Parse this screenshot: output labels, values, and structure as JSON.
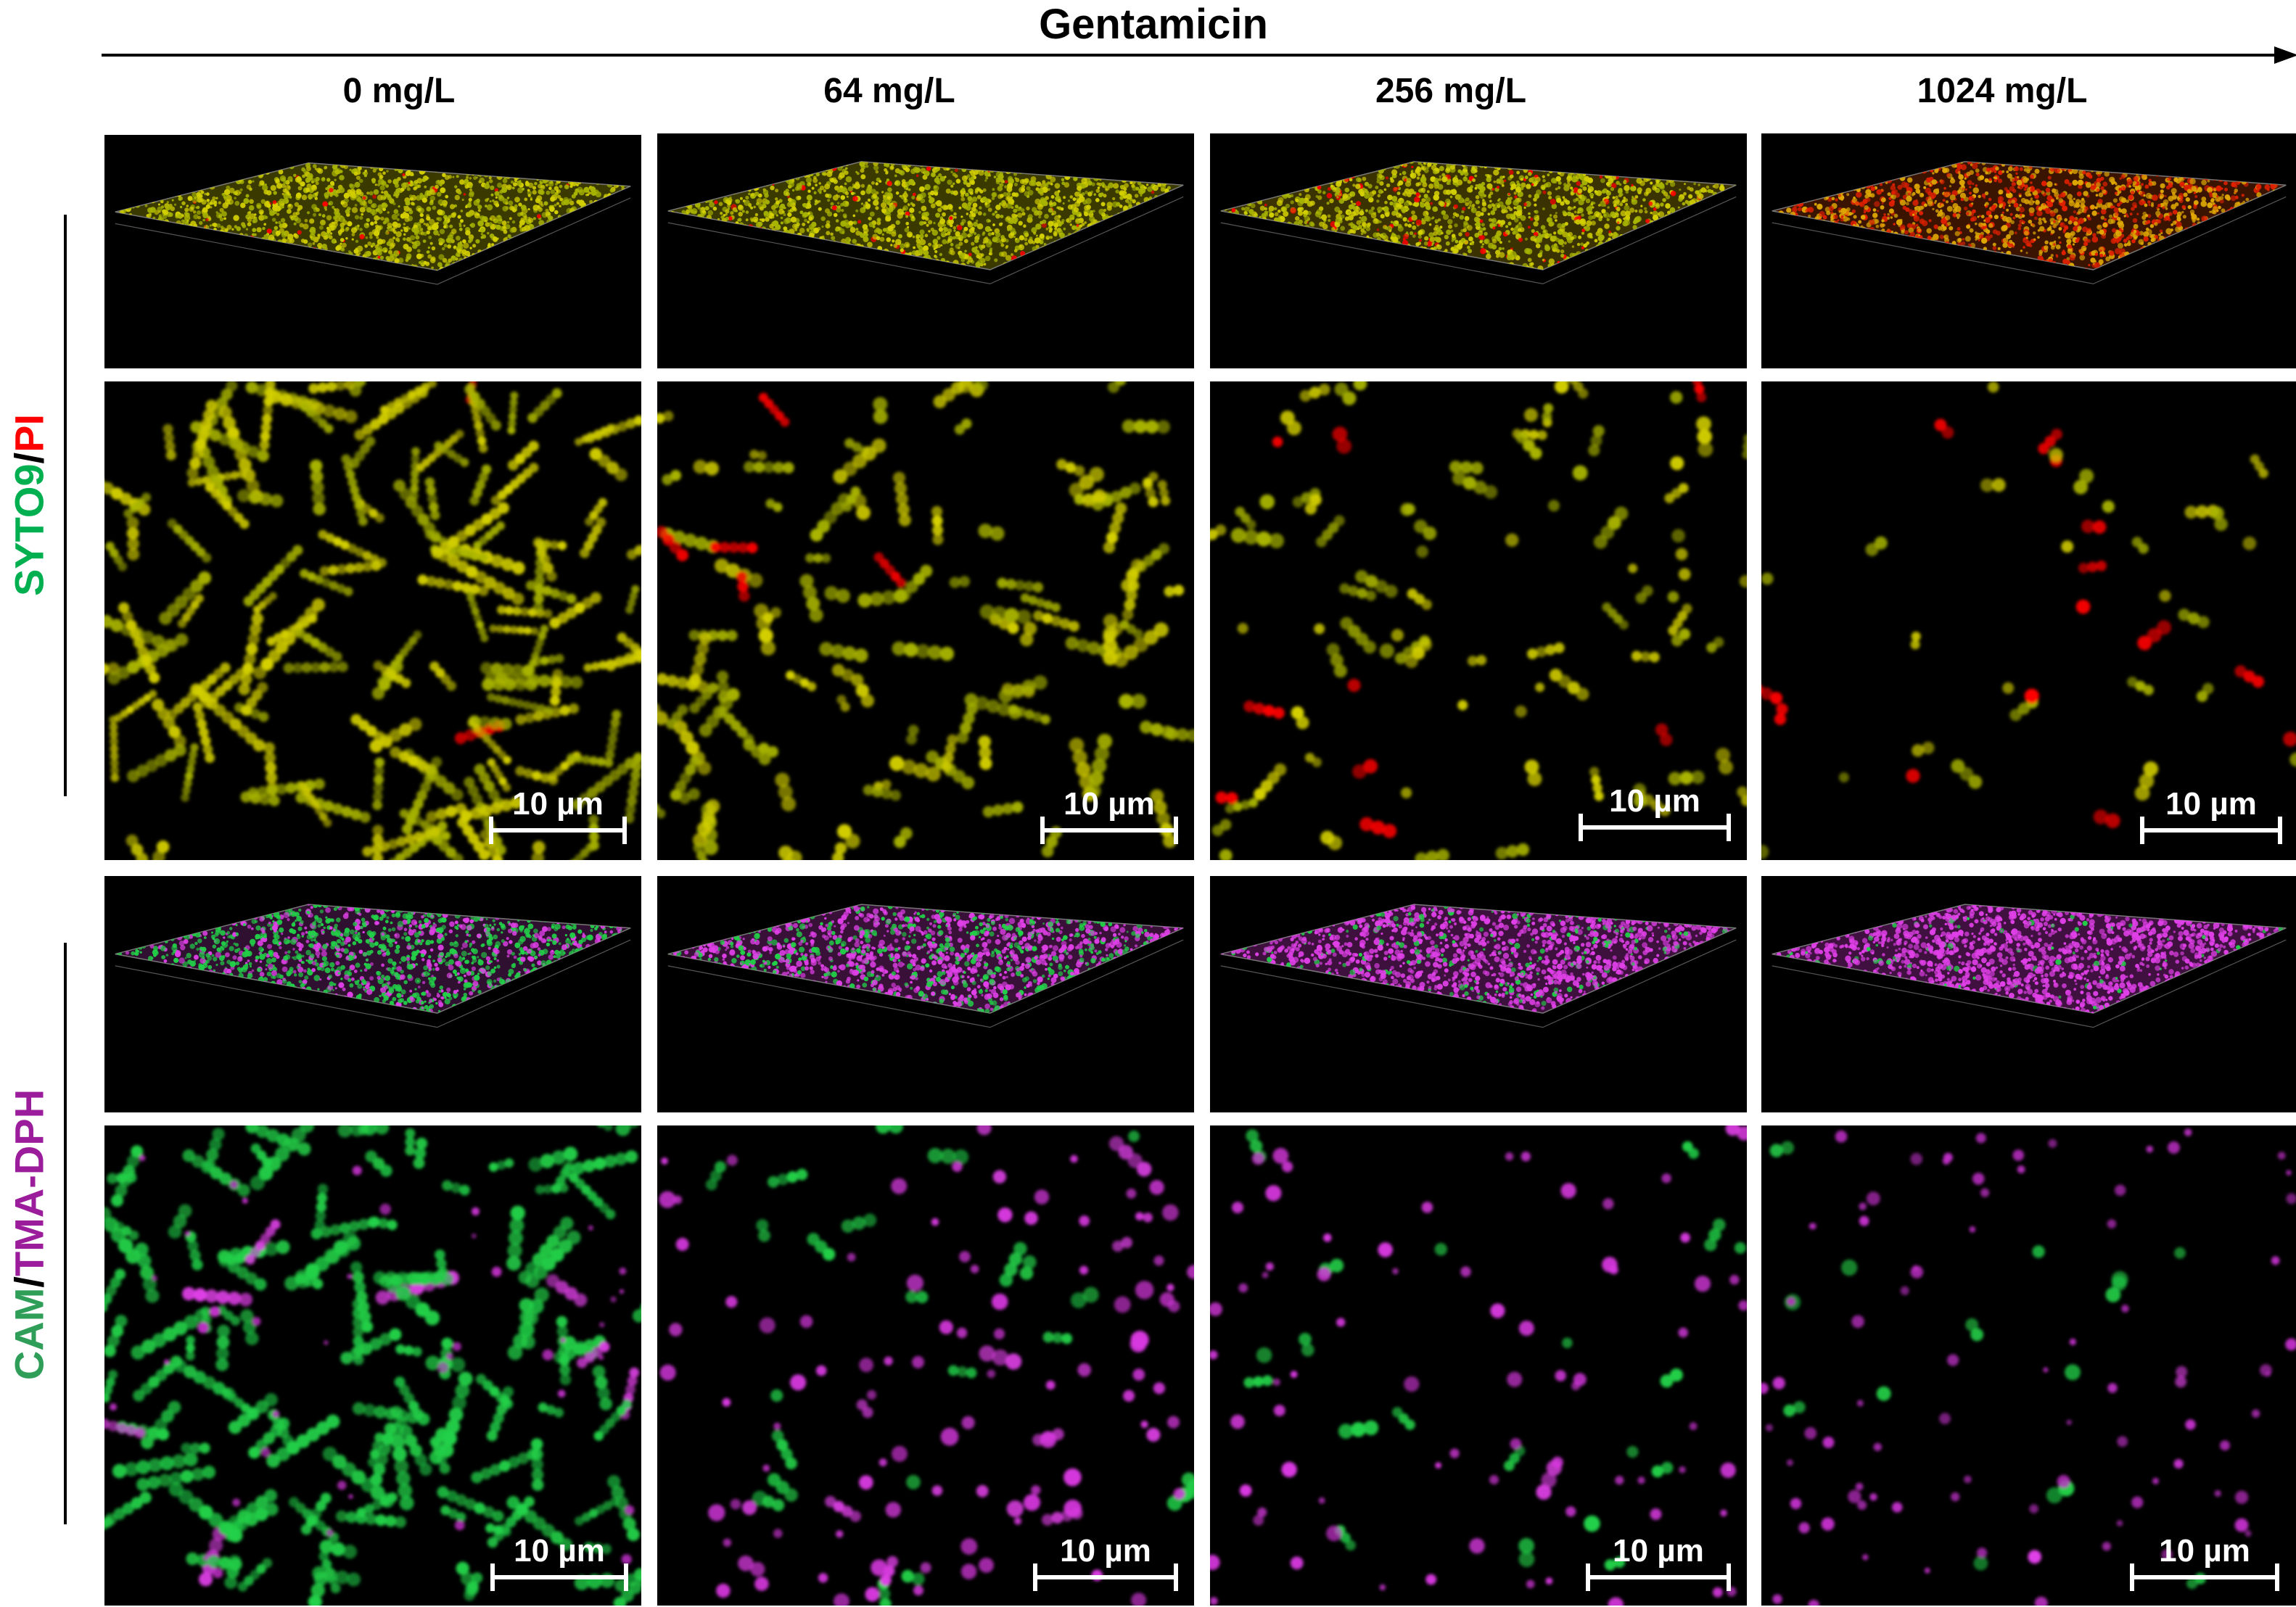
{
  "header": {
    "title": "Gentamicin"
  },
  "columns": [
    {
      "label": "0 mg/L"
    },
    {
      "label": "64 mg/L"
    },
    {
      "label": "256 mg/L"
    },
    {
      "label": "1024 mg/L"
    }
  ],
  "rows": {
    "live_dead": {
      "part1": "SYTO9",
      "sep": "/",
      "part2": "PI"
    },
    "membrane": {
      "part1": "CAM",
      "sep": "/",
      "part2": "TMA-DPH"
    }
  },
  "scale_bar_label": "10 µm",
  "colors": {
    "syto9_green": "#00b050",
    "pi_red": "#ff0000",
    "cam_green": "#2e9e58",
    "tma_magenta": "#9b1d9b",
    "yellow_cells": "#c8c800",
    "panel_background": "#000000"
  }
}
